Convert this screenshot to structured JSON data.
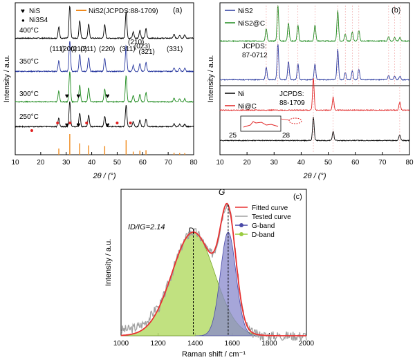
{
  "chart_data": [
    {
      "panel": "a",
      "type": "line",
      "panel_label": "(a)",
      "xlabel": "2θ / (°)",
      "ylabel": "Intensity / a.u.",
      "xlim": [
        10,
        80
      ],
      "xticks": [
        "10",
        "20",
        "30",
        "40",
        "50",
        "60",
        "70",
        "80"
      ],
      "legend": [
        {
          "symbol": "♥",
          "label": "NiS",
          "color": "#3a3aa0"
        },
        {
          "symbol": "●",
          "label": "Ni3S4",
          "color": "#e02020"
        },
        {
          "symbol": "line",
          "label": "NiS2(JCPDS:88-1709)",
          "color": "#f08a1c"
        }
      ],
      "series": [
        {
          "name": "400°C",
          "color": "#000000"
        },
        {
          "name": "350°C",
          "color": "#2a3aa0"
        },
        {
          "name": "300°C",
          "color": "#1e8a1e"
        },
        {
          "name": "250°C",
          "color": "#000000"
        }
      ],
      "peaks": [
        27.1,
        31.4,
        35.3,
        38.8,
        45.1,
        53.5,
        56.3,
        58.9,
        61.3,
        72.3,
        74.5,
        76.5
      ],
      "peak_heights": [
        0.35,
        1.0,
        0.55,
        0.45,
        0.42,
        0.85,
        0.2,
        0.25,
        0.3,
        0.12,
        0.1,
        0.1
      ],
      "hkl": [
        "(111)",
        "(200)",
        "(210)",
        "(211)",
        "(220)",
        "(311)",
        "(210)",
        "(023)",
        "(321)",
        "(331)"
      ],
      "hkl_x": [
        26.5,
        31.0,
        35.0,
        38.6,
        46.0,
        54.0,
        57.4,
        59.8,
        61.6,
        72.6
      ],
      "reference": {
        "x": [
          27.1,
          31.4,
          35.3,
          38.8,
          45.1,
          53.5,
          56.3,
          58.9,
          61.3,
          72.3,
          74.5,
          76.5
        ],
        "h": [
          0.3,
          1.0,
          0.55,
          0.45,
          0.42,
          0.7,
          0.15,
          0.2,
          0.22,
          0.1,
          0.08,
          0.08
        ]
      },
      "NiS_markers_300": [
        30.3,
        34.8,
        46.2
      ],
      "NiS_markers_250": [
        30.3,
        34.8,
        46.2
      ],
      "Ni3S4_markers_250": [
        16.5,
        26.6,
        31.5,
        38.0,
        50.0,
        55.2
      ]
    },
    {
      "panel": "b",
      "type": "line",
      "panel_label": "(b)",
      "xlabel": "2θ / (°)",
      "ylabel": "Intensity / a.u.",
      "xlim": [
        10,
        80
      ],
      "xticks": [
        "10",
        "20",
        "30",
        "40",
        "50",
        "60",
        "70",
        "80"
      ],
      "series": [
        {
          "name": "NiS2",
          "color": "#2a3aa0"
        },
        {
          "name": "NiS2@C",
          "color": "#1e8a1e"
        },
        {
          "name": "Ni",
          "color": "#000000"
        },
        {
          "name": "Ni@C",
          "color": "#e02020"
        }
      ],
      "jcpds_top": "JCPDS:",
      "jcpds_top_num": "87-0712",
      "jcpds_bottom": "JCPDS:",
      "jcpds_bottom_num": "88-1709",
      "inset_ticks": [
        "25",
        "28"
      ],
      "nis2_peaks": [
        27.1,
        31.4,
        35.3,
        38.8,
        45.1,
        53.5,
        56.3,
        58.9,
        61.3,
        72.3,
        74.5,
        76.5
      ],
      "nis2_heights": [
        0.35,
        1.0,
        0.5,
        0.45,
        0.45,
        0.85,
        0.2,
        0.25,
        0.3,
        0.12,
        0.1,
        0.1
      ],
      "ni_peaks": [
        44.5,
        51.8,
        76.4
      ],
      "ni_heights": [
        1.0,
        0.4,
        0.25
      ]
    },
    {
      "panel": "c",
      "type": "area",
      "panel_label": "(c)",
      "xlabel": "Raman shift / cm⁻¹",
      "ylabel": "Intensity / a.u.",
      "xlim": [
        1000,
        2000
      ],
      "xticks": [
        "1000",
        "1200",
        "1400",
        "1600",
        "1800",
        "2000"
      ],
      "ratio_label": "ID/IG=2.14",
      "D_label": "D",
      "G_label": "G",
      "D_center": 1390,
      "G_center": 1578,
      "legend": [
        {
          "label": "Fitted curve",
          "color": "#e83030"
        },
        {
          "label": "Tested curve",
          "color": "#a0a0a0"
        },
        {
          "label": "G-band",
          "color": "#4a4aa8"
        },
        {
          "label": "D-band",
          "color": "#9acc40"
        }
      ]
    }
  ]
}
